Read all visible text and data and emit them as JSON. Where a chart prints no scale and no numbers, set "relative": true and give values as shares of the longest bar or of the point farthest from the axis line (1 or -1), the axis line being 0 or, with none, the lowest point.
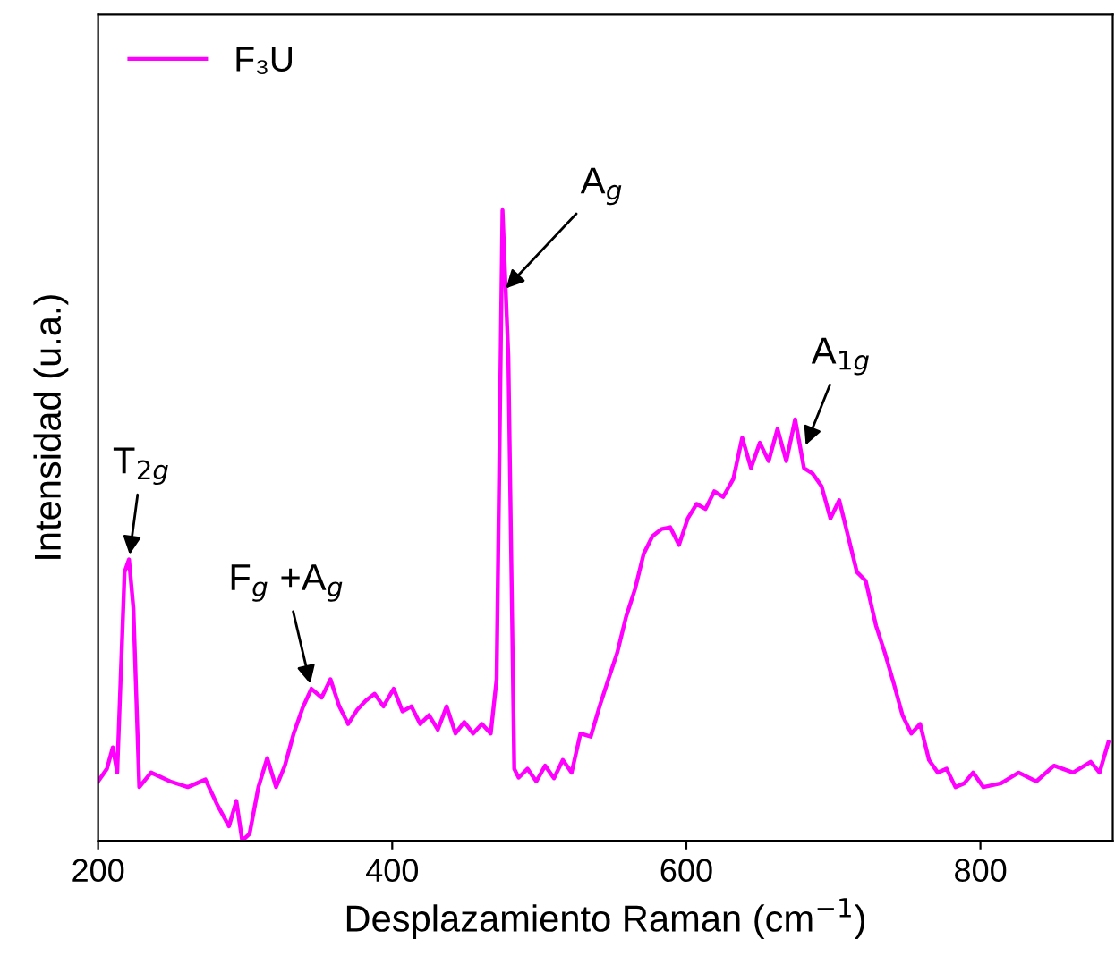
{
  "chart_data": {
    "type": "line",
    "relative": true,
    "xlabel": "Desplazamiento Raman (cm$^{−1}$)",
    "ylabel": "Intensidad (u.a.)",
    "xlim": [
      200,
      890
    ],
    "xticks": [
      200,
      400,
      600,
      800
    ],
    "tick_labels": "x",
    "grid": false,
    "legend": "top left",
    "marker": "none",
    "line_style": "solid",
    "series": [
      {
        "name": "F₃U",
        "color": "#ff00ff",
        "x": [
          200,
          206,
          210,
          213,
          218,
          221,
          224,
          228,
          236,
          249,
          261,
          273,
          281,
          289,
          294,
          298,
          303,
          309,
          315,
          321,
          327,
          333,
          339,
          345,
          352,
          358,
          364,
          370,
          376,
          382,
          388,
          394,
          401,
          407,
          413,
          419,
          425,
          431,
          437,
          443,
          449,
          455,
          461,
          467,
          471,
          475,
          479,
          483,
          486,
          492,
          498,
          504,
          510,
          516,
          522,
          528,
          535,
          541,
          547,
          553,
          559,
          565,
          571,
          577,
          583,
          589,
          595,
          601,
          607,
          613,
          619,
          625,
          632,
          638,
          644,
          650,
          656,
          662,
          668,
          674,
          680,
          686,
          692,
          698,
          704,
          710,
          716,
          722,
          729,
          735,
          741,
          747,
          753,
          759,
          765,
          771,
          777,
          783,
          789,
          795,
          802,
          814,
          826,
          838,
          850,
          863,
          875,
          881,
          887
        ],
        "values": [
          0.094,
          0.114,
          0.148,
          0.108,
          0.426,
          0.446,
          0.369,
          0.085,
          0.108,
          0.094,
          0.085,
          0.097,
          0.057,
          0.023,
          0.063,
          0,
          0.011,
          0.085,
          0.131,
          0.085,
          0.119,
          0.17,
          0.21,
          0.241,
          0.227,
          0.256,
          0.213,
          0.185,
          0.207,
          0.222,
          0.233,
          0.213,
          0.241,
          0.205,
          0.213,
          0.185,
          0.199,
          0.176,
          0.213,
          0.17,
          0.188,
          0.17,
          0.185,
          0.17,
          0.256,
          1,
          0.767,
          0.114,
          0.1,
          0.114,
          0.094,
          0.119,
          0.099,
          0.128,
          0.108,
          0.17,
          0.165,
          0.213,
          0.256,
          0.298,
          0.355,
          0.398,
          0.455,
          0.483,
          0.494,
          0.497,
          0.469,
          0.511,
          0.534,
          0.526,
          0.554,
          0.545,
          0.574,
          0.639,
          0.591,
          0.631,
          0.602,
          0.653,
          0.602,
          0.668,
          0.591,
          0.582,
          0.562,
          0.511,
          0.54,
          0.483,
          0.426,
          0.412,
          0.341,
          0.298,
          0.25,
          0.199,
          0.17,
          0.185,
          0.128,
          0.108,
          0.114,
          0.085,
          0.091,
          0.108,
          0.085,
          0.091,
          0.108,
          0.094,
          0.119,
          0.108,
          0.125,
          0.108,
          0.156
        ]
      }
    ],
    "annotations": [
      {
        "text": "T$_{2g}$",
        "x": 221,
        "y": 0.446
      },
      {
        "text": "F$_{g}$ +A$_{g}$",
        "x": 345,
        "y": 0.241
      },
      {
        "text": "A$_{g}$",
        "x": 475,
        "y": 0.87
      },
      {
        "text": "A$_{1g}$",
        "x": 680,
        "y": 0.62
      }
    ]
  }
}
